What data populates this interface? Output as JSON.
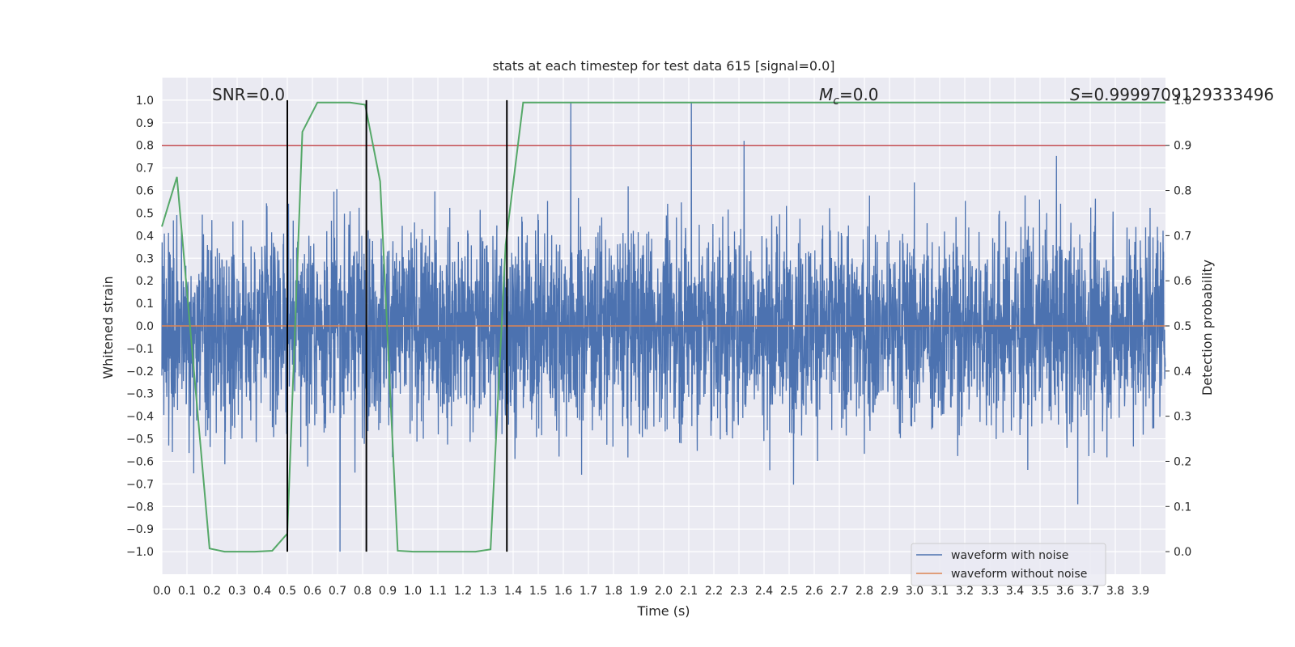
{
  "chart_data": {
    "type": "line",
    "title": "stats at each timestep for test data 615 [signal=0.0]",
    "xlabel": "Time (s)",
    "ylabel": "Whitened strain",
    "y2label": "Detection probability",
    "xlim": [
      0.0,
      4.0
    ],
    "ylim": [
      -1.1,
      1.1
    ],
    "y2lim": [
      -0.05,
      1.05
    ],
    "grid": true,
    "legend_position": "lower right",
    "x_ticks": [
      0.0,
      0.1,
      0.2,
      0.3,
      0.4,
      0.5,
      0.6,
      0.7,
      0.8,
      0.9,
      1.0,
      1.1,
      1.2,
      1.3,
      1.4,
      1.5,
      1.6,
      1.7,
      1.8,
      1.9,
      2.0,
      2.1,
      2.2,
      2.3,
      2.4,
      2.5,
      2.6,
      2.7,
      2.8,
      2.9,
      3.0,
      3.1,
      3.2,
      3.3,
      3.4,
      3.5,
      3.6,
      3.7,
      3.8,
      3.9
    ],
    "x_tick_labels": [
      "0.0",
      "0.1",
      "0.2",
      "0.3",
      "0.4",
      "0.5",
      "0.6",
      "0.7",
      "0.8",
      "0.9",
      "1.0",
      "1.1",
      "1.2",
      "1.3",
      "1.4",
      "1.5",
      "1.6",
      "1.7",
      "1.8",
      "1.9",
      "2.0",
      "2.1",
      "2.2",
      "2.3",
      "2.4",
      "2.5",
      "2.6",
      "2.7",
      "2.8",
      "2.9",
      "3.0",
      "3.1",
      "3.2",
      "3.3",
      "3.4",
      "3.5",
      "3.6",
      "3.7",
      "3.8",
      "3.9"
    ],
    "y_ticks": [
      1.0,
      0.9,
      0.8,
      0.7,
      0.6,
      0.5,
      0.4,
      0.3,
      0.2,
      0.1,
      0.0,
      -0.1,
      -0.2,
      -0.3,
      -0.4,
      -0.5,
      -0.6,
      -0.7,
      -0.8,
      -0.9,
      -1.0
    ],
    "y_tick_labels": [
      "1.0",
      "0.9",
      "0.8",
      "0.7",
      "0.6",
      "0.5",
      "0.4",
      "0.3",
      "0.2",
      "0.1",
      "0.0",
      "−0.1",
      "−0.2",
      "−0.3",
      "−0.4",
      "−0.5",
      "−0.6",
      "−0.7",
      "−0.8",
      "−0.9",
      "−1.0"
    ],
    "y2_ticks": [
      1.0,
      0.9,
      0.8,
      0.7,
      0.6,
      0.5,
      0.4,
      0.3,
      0.2,
      0.1,
      0.0
    ],
    "y2_tick_labels": [
      "1.0",
      "0.9",
      "0.8",
      "0.7",
      "0.6",
      "0.5",
      "0.4",
      "0.3",
      "0.2",
      "0.1",
      "0.0"
    ],
    "annotations": {
      "snr": "SNR=0.0",
      "mc_symbol": "M",
      "mc_sub": "c",
      "mc_value": "=0.0",
      "s_symbol": "S",
      "s_value": "=0.9999709129333496"
    },
    "series": [
      {
        "name": "waveform with noise",
        "color": "#4c72b0",
        "kind": "noise",
        "approx_amplitude": 0.22,
        "peaks": [
          {
            "x": 0.5,
            "y": 0.82
          },
          {
            "x": 0.5,
            "y": -0.9
          },
          {
            "x": 0.71,
            "y": -1.0
          },
          {
            "x": 1.63,
            "y": 0.99
          },
          {
            "x": 2.11,
            "y": 0.99
          },
          {
            "x": 2.32,
            "y": 0.82
          },
          {
            "x": 3.65,
            "y": -0.79
          }
        ]
      },
      {
        "name": "waveform without noise",
        "color": "#dd8452",
        "x": [
          0.0,
          4.0
        ],
        "y": [
          0.0,
          0.0
        ]
      },
      {
        "color": "#55a868",
        "axis": "right",
        "x": [
          0.0,
          0.06,
          0.19,
          0.25,
          0.31,
          0.37,
          0.44,
          0.5,
          0.56,
          0.62,
          0.69,
          0.75,
          0.81,
          0.87,
          0.94,
          1.0,
          1.06,
          1.12,
          1.19,
          1.25,
          1.31,
          1.37,
          1.44,
          1.5,
          4.0
        ],
        "y": [
          0.72,
          0.83,
          0.007,
          0.0,
          0.0,
          0.0,
          0.002,
          0.04,
          0.93,
          0.995,
          0.995,
          0.995,
          0.99,
          0.82,
          0.002,
          0.0,
          0.0,
          0.0,
          0.0,
          0.0,
          0.005,
          0.68,
          0.995,
          0.995,
          0.995
        ]
      }
    ],
    "horizontal_lines": [
      {
        "axis": "right",
        "y": 0.9,
        "color": "#c44e52"
      }
    ],
    "vertical_lines": [
      {
        "x": 0.5,
        "ymin": -1.0,
        "ymax": 1.0,
        "color": "#000000"
      },
      {
        "x": 0.815,
        "ymin": -1.0,
        "ymax": 1.0,
        "color": "#000000"
      },
      {
        "x": 1.375,
        "ymin": -1.0,
        "ymax": 1.0,
        "color": "#000000"
      }
    ],
    "legend": [
      "waveform with noise",
      "waveform without noise"
    ]
  },
  "style": {
    "axes_bg": "#eaeaf2",
    "grid_color": "#ffffff",
    "text_color": "#262626",
    "tick_color": "#262626"
  }
}
